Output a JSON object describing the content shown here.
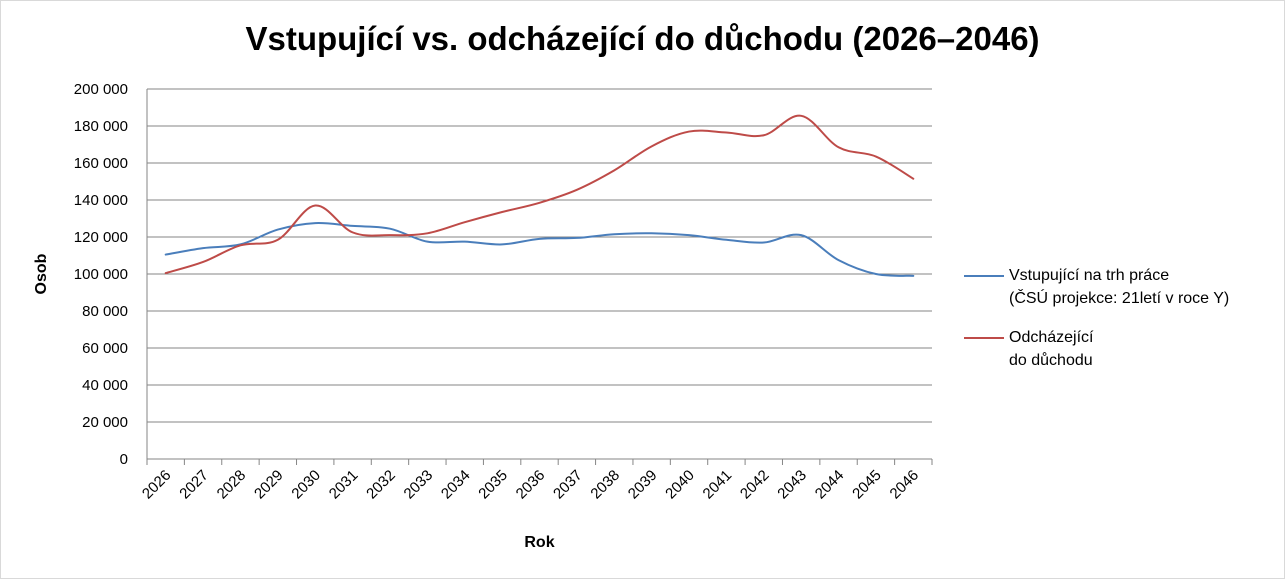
{
  "chart_data": {
    "type": "line",
    "title": "Vstupující vs. odcházející do důchodu (2026–2046)",
    "xlabel": "Rok",
    "ylabel": "Osob",
    "ylim": [
      0,
      200000
    ],
    "y_ticks": [
      "0",
      "20 000",
      "40 000",
      "60 000",
      "80 000",
      "100 000",
      "120 000",
      "140 000",
      "160 000",
      "180 000",
      "200 000"
    ],
    "categories": [
      "2026",
      "2027",
      "2028",
      "2029",
      "2030",
      "2031",
      "2032",
      "2033",
      "2034",
      "2035",
      "2036",
      "2037",
      "2038",
      "2039",
      "2040",
      "2041",
      "2042",
      "2043",
      "2044",
      "2045",
      "2046"
    ],
    "grid": true,
    "legend_position": "right",
    "series": [
      {
        "name_lines": [
          "Vstupující na trh práce",
          "(ČSÚ projekce: 21letí v roce Y)"
        ],
        "color": "#4a7ebb",
        "values": [
          110500,
          114000,
          116000,
          124000,
          127500,
          126000,
          124500,
          117500,
          117500,
          116000,
          119000,
          119500,
          121500,
          122000,
          121000,
          118500,
          117000,
          121000,
          107500,
          100000,
          99000
        ]
      },
      {
        "name_lines": [
          "Odcházející",
          "do důchodu"
        ],
        "color": "#be4b48",
        "values": [
          100500,
          106500,
          115500,
          118500,
          137000,
          122500,
          121000,
          122000,
          128000,
          133500,
          138500,
          145500,
          156000,
          169000,
          177000,
          176500,
          175000,
          185500,
          168500,
          163500,
          151500
        ]
      }
    ]
  }
}
